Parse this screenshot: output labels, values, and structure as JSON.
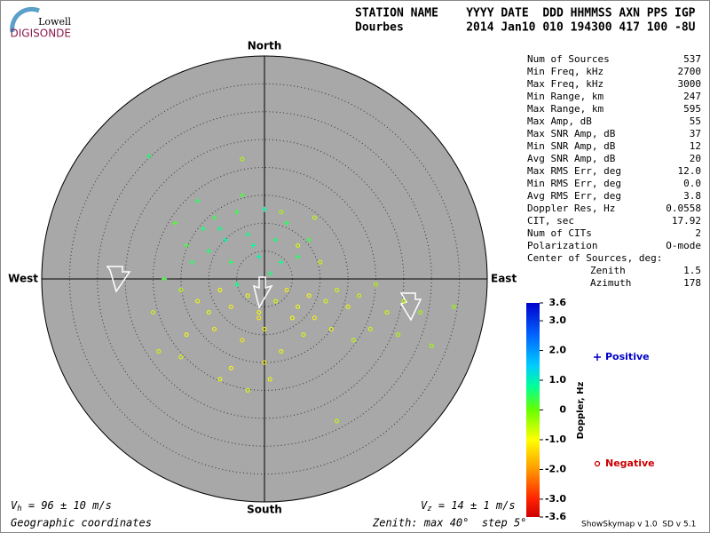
{
  "logo": {
    "top": "Lowell",
    "bottom": "DIGISONDE"
  },
  "header": {
    "line1": "STATION NAME    YYYY DATE  DDD HHMMSS AXN PPS IGP",
    "line2": "Dourbes         2014 Jan10 010 194300 417 100 -8U"
  },
  "stats": [
    [
      "Num of Sources",
      "537"
    ],
    [
      "Min Freq, kHz",
      "2700"
    ],
    [
      "Max Freq, kHz",
      "3000"
    ],
    [
      "Min Range, km",
      "247"
    ],
    [
      "Max Range, km",
      "595"
    ],
    [
      "Max Amp, dB",
      "55"
    ],
    [
      "Max SNR Amp, dB",
      "37"
    ],
    [
      "Min SNR Amp, dB",
      "12"
    ],
    [
      "Avg SNR Amp, dB",
      "20"
    ],
    [
      "Max RMS Err, deg",
      "12.0"
    ],
    [
      "Min RMS Err, deg",
      "0.0"
    ],
    [
      "Avg RMS Err, deg",
      "3.8"
    ],
    [
      "Doppler Res, Hz",
      "0.0558"
    ],
    [
      "CIT, sec",
      "17.92"
    ],
    [
      "Num of CITs",
      "2"
    ],
    [
      "Polarization",
      "O-mode"
    ]
  ],
  "center": {
    "title": "Center of Sources, deg:",
    "rows": [
      [
        "Zenith",
        "1.5"
      ],
      [
        "Azimuth",
        "178"
      ]
    ]
  },
  "chart_data": {
    "type": "scatter",
    "directions": {
      "north": "North",
      "south": "South",
      "west": "West",
      "east": "East"
    },
    "xlim": [
      -40,
      40
    ],
    "ylim": [
      -40,
      40
    ],
    "rings": [
      5,
      10,
      15,
      20,
      25,
      30,
      35
    ],
    "series": [
      {
        "name": "Positive",
        "marker": "+",
        "color": "#0000cc",
        "x": [
          -20.7,
          -12,
          -8,
          -5,
          -2,
          0,
          -10,
          -14,
          -6,
          -3,
          2,
          4,
          -9,
          -4,
          6,
          -16,
          -1,
          3,
          -7,
          -11,
          8,
          -13,
          -18,
          1,
          -5
        ],
        "y": [
          22,
          14,
          9,
          12,
          6,
          12.5,
          5,
          6,
          3,
          8,
          7,
          10,
          11,
          15,
          4,
          10,
          4,
          3,
          7,
          9,
          7,
          3,
          0,
          1,
          -1
        ],
        "doppler": [
          0.6,
          0.5,
          0.7,
          0.4,
          0.8,
          0.9,
          0.6,
          0.3,
          0.5,
          0.7,
          0.6,
          0.5,
          0.4,
          0.3,
          0.5,
          0.2,
          0.9,
          0.7,
          0.8,
          0.6,
          0.4,
          0.5,
          0.3,
          0.6,
          0.7
        ]
      },
      {
        "name": "Negative",
        "marker": "o",
        "color": "#cc0000",
        "x": [
          -4,
          3,
          9,
          6,
          10,
          -15,
          -12,
          -8,
          -6,
          -3,
          -1,
          2,
          4,
          6,
          8,
          11,
          13,
          15,
          17,
          20,
          22,
          25,
          28,
          34,
          -20,
          -14,
          -9,
          -4,
          0,
          3,
          7,
          12,
          16,
          -15,
          -6,
          0,
          -8,
          -3,
          13,
          -1,
          5,
          9,
          -10,
          19,
          24,
          -19,
          30,
          1
        ],
        "y": [
          21.5,
          12,
          11,
          6,
          3,
          -2,
          -4,
          -2,
          -5,
          -3,
          -6,
          -4,
          -2,
          -5,
          -3,
          -4,
          -2,
          -5,
          -3,
          -1,
          -6,
          -4,
          -6,
          -5,
          -6,
          -10,
          -9,
          -11,
          -9,
          -13,
          -10,
          -9,
          -11,
          -14,
          -16,
          -15,
          -18,
          -20,
          -25.5,
          -7,
          -7,
          -7,
          -6,
          -9,
          -10,
          -13,
          -12,
          -18
        ],
        "doppler": [
          -0.5,
          -0.4,
          -0.6,
          -0.8,
          -0.7,
          -0.5,
          -0.9,
          -1.0,
          -1.1,
          -0.9,
          -1.0,
          -0.8,
          -1.1,
          -0.9,
          -1.0,
          -0.8,
          -0.7,
          -0.9,
          -0.6,
          -0.5,
          -0.7,
          -0.6,
          -0.4,
          -0.3,
          -0.6,
          -1.0,
          -1.1,
          -1.2,
          -1.0,
          -0.9,
          -0.8,
          -0.9,
          -0.6,
          -0.8,
          -1.0,
          -1.1,
          -0.9,
          -0.8,
          -0.6,
          -1.2,
          -1.0,
          -1.1,
          -0.9,
          -0.7,
          -0.5,
          -0.7,
          -0.4,
          -0.9
        ]
      }
    ],
    "colorbar": {
      "label": "Doppler, Hz",
      "clim": [
        -3.6,
        3.6
      ],
      "ticks": [
        3.6,
        {
          "value": 3,
          "label": "3.0"
        },
        {
          "value": 2,
          "label": "2.0"
        },
        {
          "value": 1,
          "label": "1.0"
        },
        0,
        {
          "value": -1,
          "label": "-1.0"
        },
        {
          "value": -2,
          "label": "-2.0"
        },
        {
          "value": -3,
          "label": "-3.0"
        },
        -3.6
      ]
    },
    "vh": {
      "symbol": "V",
      "sub": "h",
      "text": " = 96 ± 10 m/s"
    },
    "vz": {
      "symbol": "V",
      "sub": "z",
      "text": " = 14 ± 1 m/s"
    },
    "coords": "Geographic coordinates",
    "zenith": "Zenith: max 40°  step 5°",
    "version": "ShowSkymap v 1.0  SD v 5.1"
  }
}
